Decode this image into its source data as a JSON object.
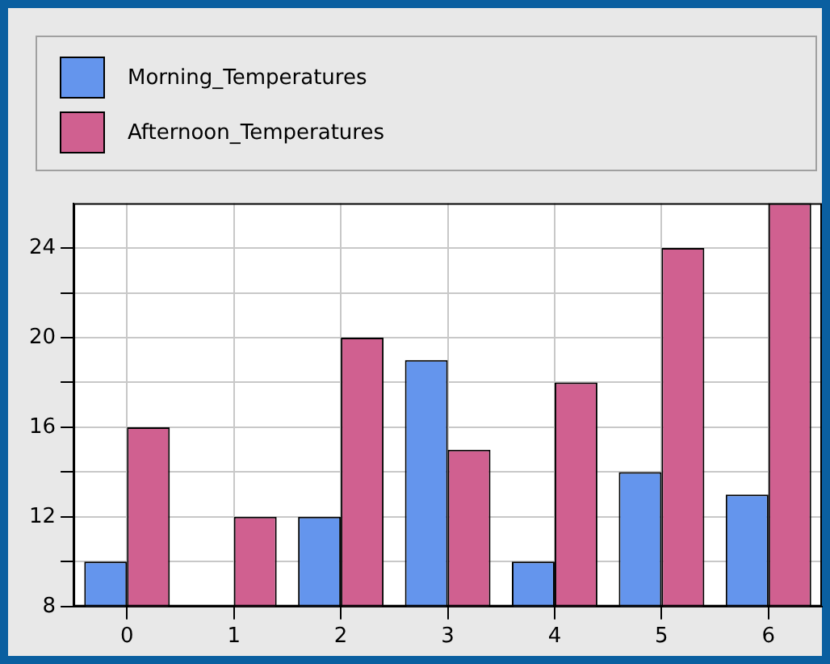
{
  "chart_data": {
    "type": "bar",
    "categories": [
      "0",
      "1",
      "2",
      "3",
      "4",
      "5",
      "6"
    ],
    "series": [
      {
        "name": "Morning_Temperatures",
        "color": "#6495ed",
        "values": [
          10,
          null,
          12,
          19,
          10,
          14,
          13
        ]
      },
      {
        "name": "Afternoon_Temperatures",
        "color": "#d06090",
        "values": [
          16,
          12,
          20,
          15,
          18,
          24,
          26
        ]
      }
    ],
    "ylim": [
      8,
      26
    ],
    "yticks": [
      8,
      {
        "value": 10,
        "label": null
      },
      12,
      {
        "value": 14,
        "label": null
      },
      16,
      {
        "value": 18,
        "label": null
      },
      20,
      {
        "value": 22,
        "label": null
      },
      24
    ],
    "grid": true,
    "legend": "top"
  }
}
